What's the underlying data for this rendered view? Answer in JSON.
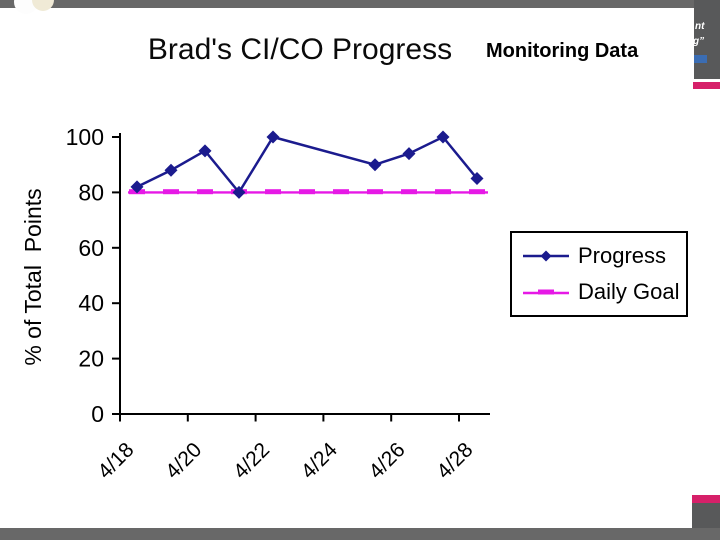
{
  "slide": {
    "title": "Monitoring Data",
    "decor": {
      "quote_fragment_line1": "nt",
      "quote_fragment_line2": "g”",
      "accent_color": "#d62069",
      "frame_color": "#686868",
      "corner_block_color": "#58595a",
      "link_mark_color": "#3b6db3",
      "circle1_color": "#fdfdfd",
      "circle2_color": "#f0ead6"
    }
  },
  "chart_data": {
    "type": "line",
    "title": "Brad's CI/CO Progress",
    "ylabel": "% of Total  Points",
    "xlabel": "",
    "ylim": [
      0,
      100
    ],
    "y_ticks": [
      0,
      20,
      40,
      60,
      80,
      100
    ],
    "x_tick_labels": [
      "4/18",
      "4/20",
      "4/22",
      "4/24",
      "4/26",
      "4/28"
    ],
    "grid": false,
    "legend_position": "middle-right",
    "series": [
      {
        "name": "Progress",
        "type": "line",
        "color": "#1b1b8e",
        "marker": "diamond",
        "points": [
          {
            "date": "4/18",
            "value": 82
          },
          {
            "date": "4/19",
            "value": 88
          },
          {
            "date": "4/20",
            "value": 95
          },
          {
            "date": "4/21",
            "value": 80
          },
          {
            "date": "4/22",
            "value": 100
          },
          {
            "date": "4/25",
            "value": 90
          },
          {
            "date": "4/26",
            "value": 94
          },
          {
            "date": "4/27",
            "value": 100
          },
          {
            "date": "4/28",
            "value": 85
          }
        ]
      },
      {
        "name": "Daily Goal",
        "type": "line",
        "color": "#e619e6",
        "marker": "dash",
        "constant_value": 80,
        "start_date": "4/18",
        "end_date": "4/28"
      }
    ]
  }
}
